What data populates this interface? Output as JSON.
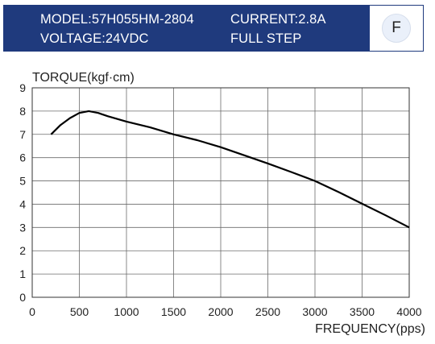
{
  "header": {
    "model": "MODEL:57H055HM-2804",
    "current": "CURRENT:2.8A",
    "voltage": "VOLTAGE:24VDC",
    "step_mode": "FULL STEP",
    "mode_badge": "F",
    "background_color": "#1f3a7d"
  },
  "chart_data": {
    "type": "line",
    "ylabel": "TORQUE(kgf·cm)",
    "xlabel": "FREQUENCY(pps)",
    "xlim": [
      0,
      4000
    ],
    "ylim": [
      0,
      9
    ],
    "x_ticks": [
      0,
      500,
      1000,
      1500,
      2000,
      2500,
      3000,
      3500,
      4000
    ],
    "y_ticks": [
      0,
      1,
      2,
      3,
      4,
      5,
      6,
      7,
      8,
      9
    ],
    "grid": true,
    "series": [
      {
        "x": [
          200,
          300,
          400,
          500,
          600,
          700,
          800,
          1000,
          1250,
          1500,
          1750,
          2000,
          2250,
          2500,
          2750,
          3000,
          3250,
          3500,
          3750,
          4000
        ],
        "y": [
          7.0,
          7.4,
          7.7,
          7.92,
          8.0,
          7.92,
          7.78,
          7.55,
          7.3,
          7.0,
          6.75,
          6.45,
          6.1,
          5.75,
          5.38,
          5.0,
          4.52,
          4.02,
          3.52,
          3.0
        ]
      }
    ]
  }
}
